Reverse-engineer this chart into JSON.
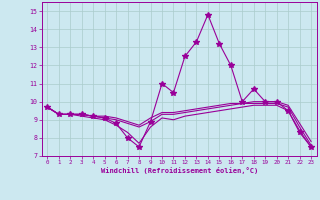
{
  "xlabel": "Windchill (Refroidissement éolien,°C)",
  "background_color": "#cce8f0",
  "line_color": "#990099",
  "grid_color": "#aacccc",
  "xlim": [
    -0.5,
    23.5
  ],
  "ylim": [
    7,
    15.5
  ],
  "yticks": [
    7,
    8,
    9,
    10,
    11,
    12,
    13,
    14,
    15
  ],
  "xticks": [
    0,
    1,
    2,
    3,
    4,
    5,
    6,
    7,
    8,
    9,
    10,
    11,
    12,
    13,
    14,
    15,
    16,
    17,
    18,
    19,
    20,
    21,
    22,
    23
  ],
  "series": [
    [
      9.7,
      9.3,
      9.3,
      9.3,
      9.2,
      9.1,
      8.8,
      8.0,
      7.5,
      8.9,
      11.0,
      10.5,
      12.5,
      13.3,
      14.8,
      13.2,
      12.0,
      10.0,
      10.7,
      10.0,
      10.0,
      9.5,
      8.3,
      7.5
    ],
    [
      9.7,
      9.3,
      9.3,
      9.3,
      9.2,
      9.2,
      9.1,
      8.9,
      8.7,
      9.1,
      9.4,
      9.4,
      9.5,
      9.6,
      9.7,
      9.8,
      9.9,
      9.9,
      10.0,
      10.0,
      10.0,
      9.8,
      8.8,
      7.8
    ],
    [
      9.7,
      9.3,
      9.3,
      9.3,
      9.2,
      9.1,
      9.0,
      8.8,
      8.6,
      8.9,
      9.3,
      9.3,
      9.4,
      9.5,
      9.6,
      9.7,
      9.8,
      9.9,
      9.9,
      9.9,
      9.9,
      9.7,
      8.6,
      7.6
    ],
    [
      9.7,
      9.3,
      9.3,
      9.2,
      9.1,
      9.0,
      8.7,
      8.3,
      7.7,
      8.6,
      9.1,
      9.0,
      9.2,
      9.3,
      9.4,
      9.5,
      9.6,
      9.7,
      9.8,
      9.8,
      9.8,
      9.5,
      8.4,
      7.5
    ]
  ],
  "marker_series": 0,
  "marker": "*",
  "markersize": 4
}
